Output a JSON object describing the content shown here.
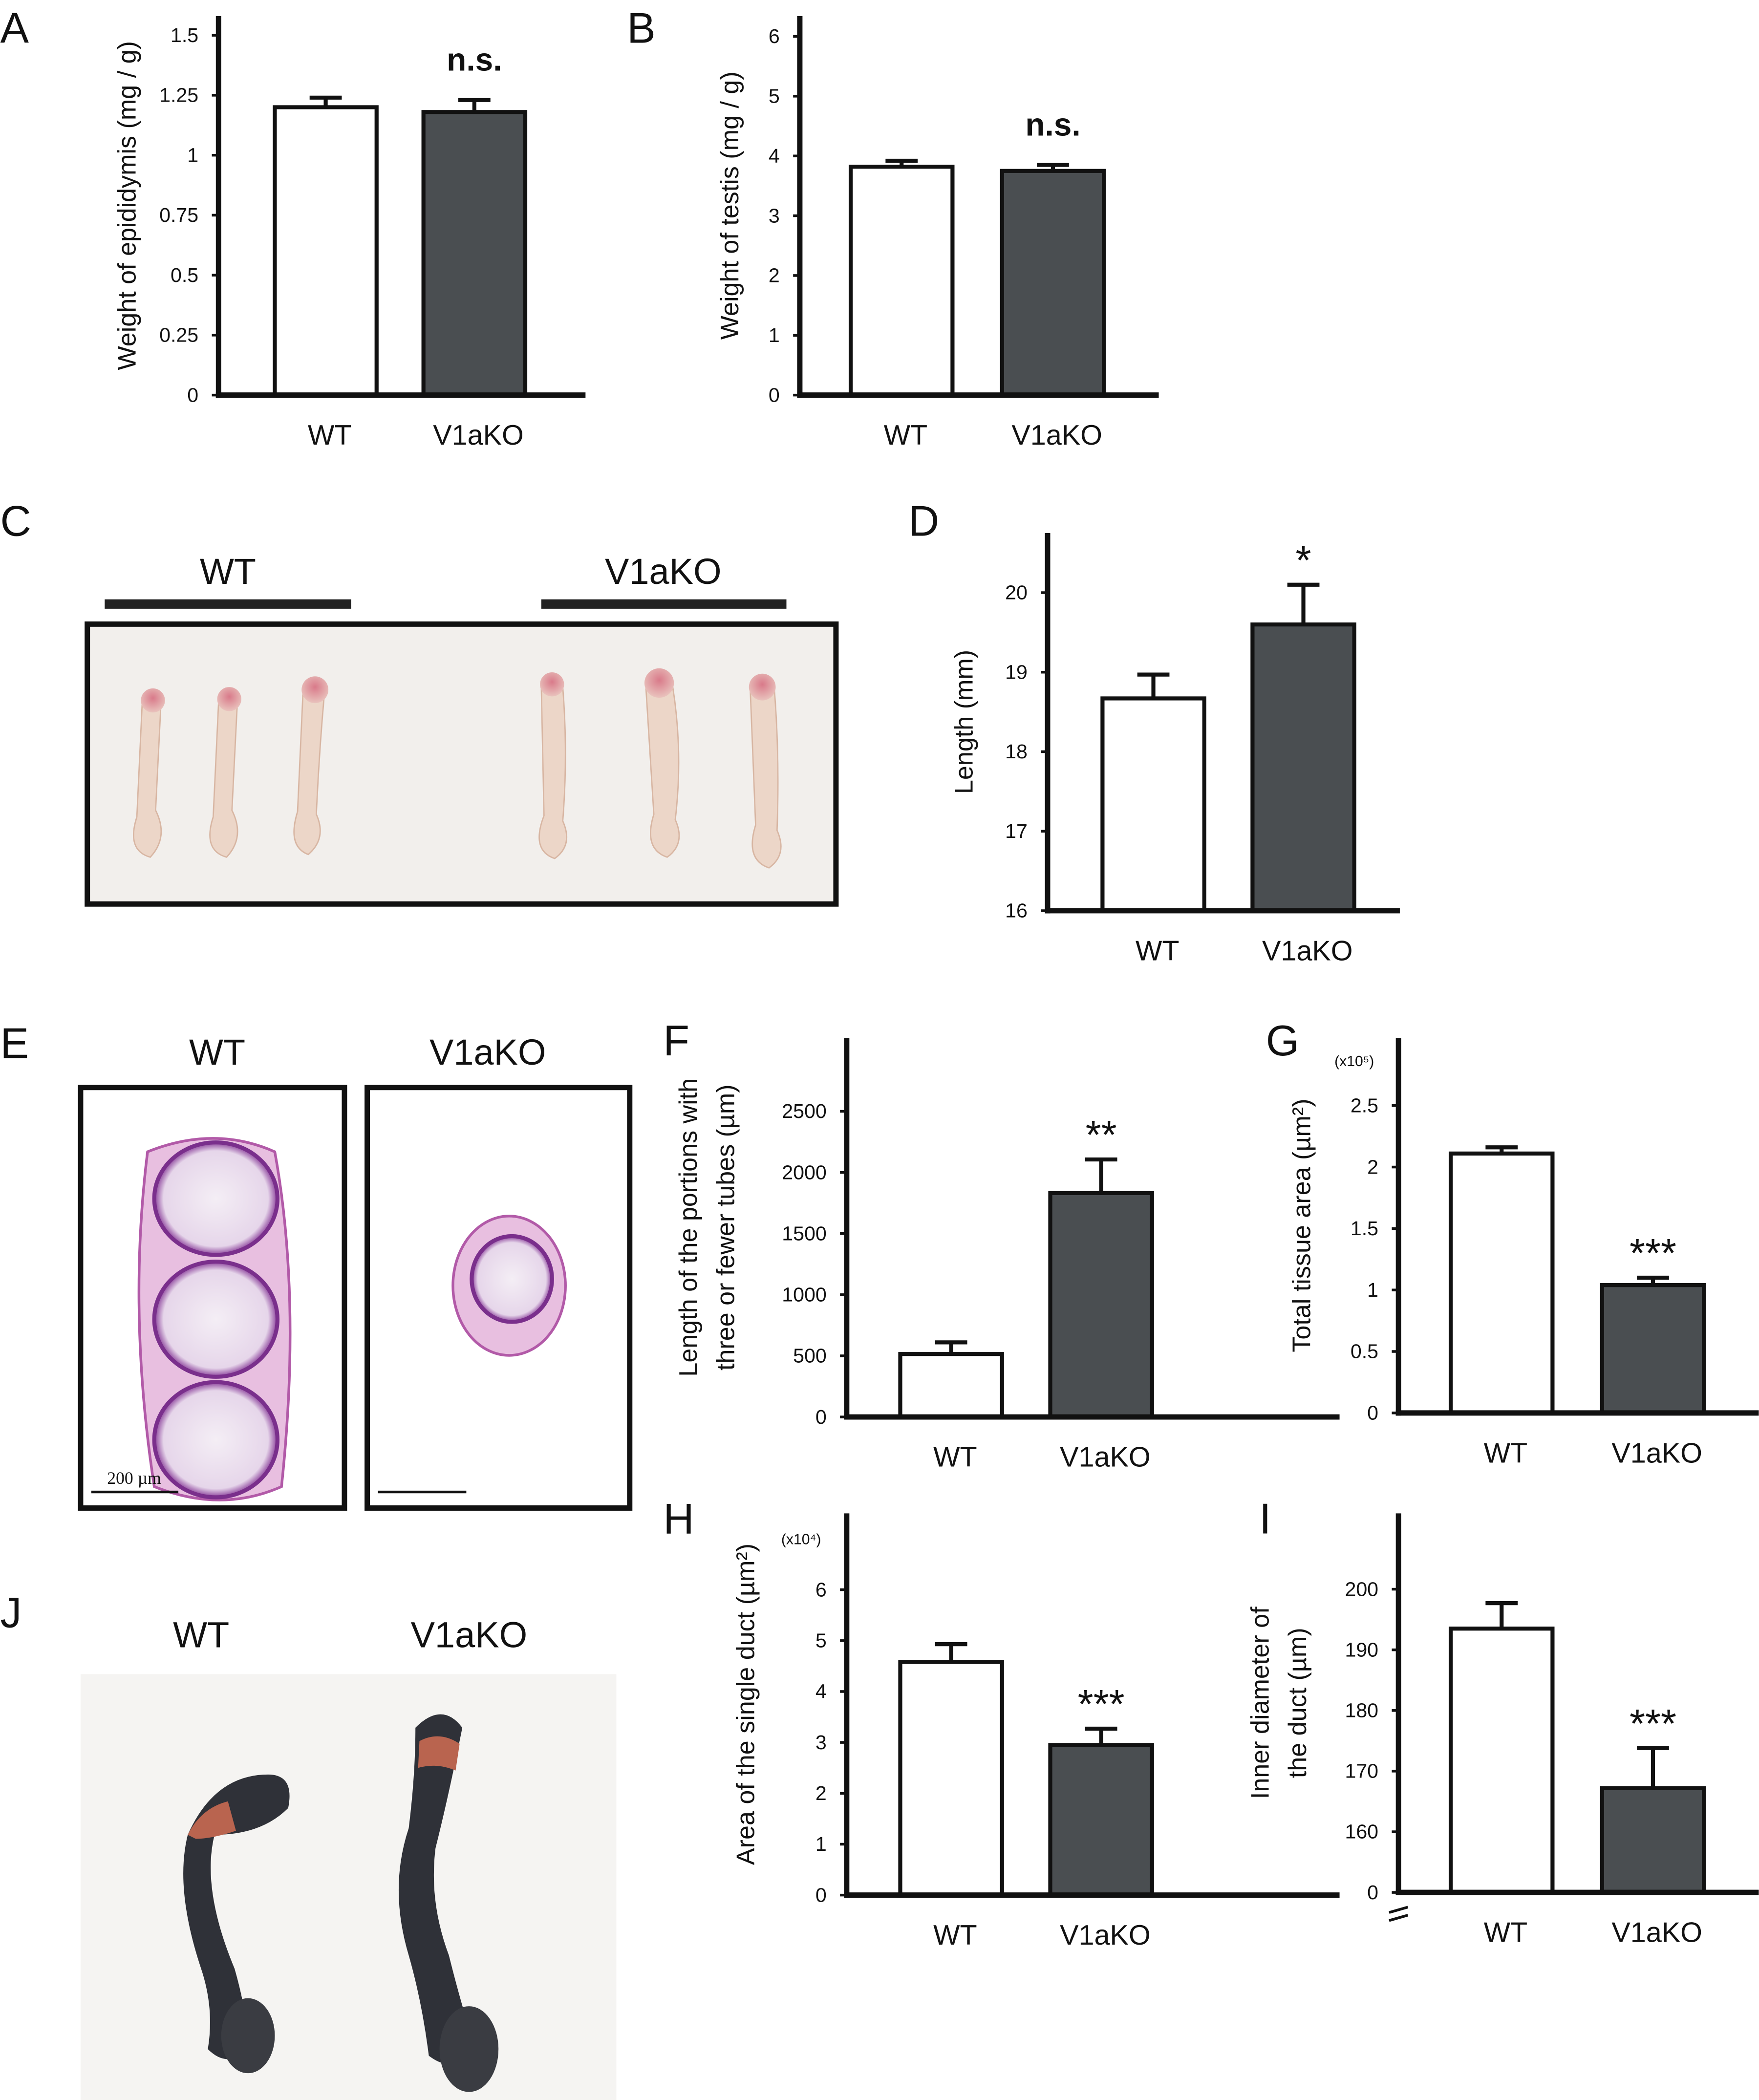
{
  "chart_data": [
    {
      "type": "bar",
      "panel": "A",
      "ylabel": [
        "Weight of epididymis (mg / g)"
      ],
      "categories": [
        "WT",
        "V1aKO"
      ],
      "values": [
        1.2,
        1.18
      ],
      "errors": [
        0.04,
        0.05
      ],
      "colors": [
        "#ffffff",
        "#4a4e51"
      ],
      "ylim": [
        0,
        1.58
      ],
      "yticks": [
        0,
        0.25,
        0.5,
        0.75,
        1,
        1.25,
        1.5
      ],
      "significance": "n.s."
    },
    {
      "type": "bar",
      "panel": "B",
      "ylabel": [
        "Weight of testis  (mg / g)"
      ],
      "categories": [
        "WT",
        "V1aKO"
      ],
      "values": [
        3.82,
        3.75
      ],
      "errors": [
        0.1,
        0.1
      ],
      "colors": [
        "#ffffff",
        "#4a4e51"
      ],
      "ylim": [
        0,
        6.34
      ],
      "yticks": [
        0,
        1,
        2,
        3,
        4,
        5,
        6
      ],
      "significance": "n.s."
    },
    {
      "type": "bar",
      "panel": "D",
      "ylabel": [
        "Length (mm)"
      ],
      "categories": [
        "WT",
        "V1aKO"
      ],
      "values": [
        18.67,
        19.6
      ],
      "errors": [
        0.3,
        0.5
      ],
      "colors": [
        "#ffffff",
        "#4a4e51"
      ],
      "ylim": [
        16,
        20.75
      ],
      "yticks": [
        16,
        17,
        18,
        19,
        20
      ],
      "significance": "*"
    },
    {
      "type": "bar",
      "panel": "F",
      "ylabel": [
        "Length of the portions with",
        "three or fewer tubes (µm)"
      ],
      "categories": [
        "WT",
        "V1aKO"
      ],
      "values": [
        515,
        1831
      ],
      "errors": [
        95,
        275
      ],
      "colors": [
        "#ffffff",
        "#4a4e51"
      ],
      "ylim": [
        0,
        3100
      ],
      "yticks": [
        0,
        500,
        1000,
        1500,
        2000,
        2500
      ],
      "significance": "**"
    },
    {
      "type": "bar",
      "panel": "G",
      "unit_note": "(x10⁵)",
      "ylabel": [
        "Total tissue area (µm²)"
      ],
      "categories": [
        "WT",
        "V1aKO"
      ],
      "values": [
        2.11,
        1.04
      ],
      "errors": [
        0.05,
        0.06
      ],
      "colors": [
        "#ffffff",
        "#4a4e51"
      ],
      "ylim": [
        0,
        3.05
      ],
      "yticks": [
        0,
        0.5,
        1,
        1.5,
        2,
        2.5
      ],
      "significance": "***"
    },
    {
      "type": "bar",
      "panel": "H",
      "unit_note": "(x10⁴)",
      "ylabel": [
        "Area of the single duct (µm²)"
      ],
      "categories": [
        "WT",
        "V1aKO"
      ],
      "values": [
        4.58,
        2.95
      ],
      "errors": [
        0.35,
        0.32
      ],
      "colors": [
        "#ffffff",
        "#4a4e51"
      ],
      "ylim": [
        0,
        7.5
      ],
      "yticks": [
        0,
        1,
        2,
        3,
        4,
        5,
        6
      ],
      "significance": "***"
    },
    {
      "type": "bar",
      "panel": "I",
      "ylabel": [
        "Inner diameter of",
        "the duct (µm)"
      ],
      "categories": [
        "WT",
        "V1aKO"
      ],
      "values": [
        193.5,
        167.2
      ],
      "errors": [
        4.2,
        6.6
      ],
      "colors": [
        "#ffffff",
        "#4a4e51"
      ],
      "ylim": [
        0,
        212.5
      ],
      "ybreak": [
        0,
        150
      ],
      "yticks": [
        0,
        160,
        170,
        180,
        190,
        200
      ],
      "significance": "***"
    }
  ],
  "photos": {
    "C": {
      "panel": "C",
      "groups": [
        "WT",
        "V1aKO"
      ]
    },
    "E": {
      "panel": "E",
      "groups": [
        "WT",
        "V1aKO"
      ],
      "scale_bar": "200 µm"
    },
    "J": {
      "panel": "J",
      "groups": [
        "WT",
        "V1aKO"
      ]
    }
  }
}
